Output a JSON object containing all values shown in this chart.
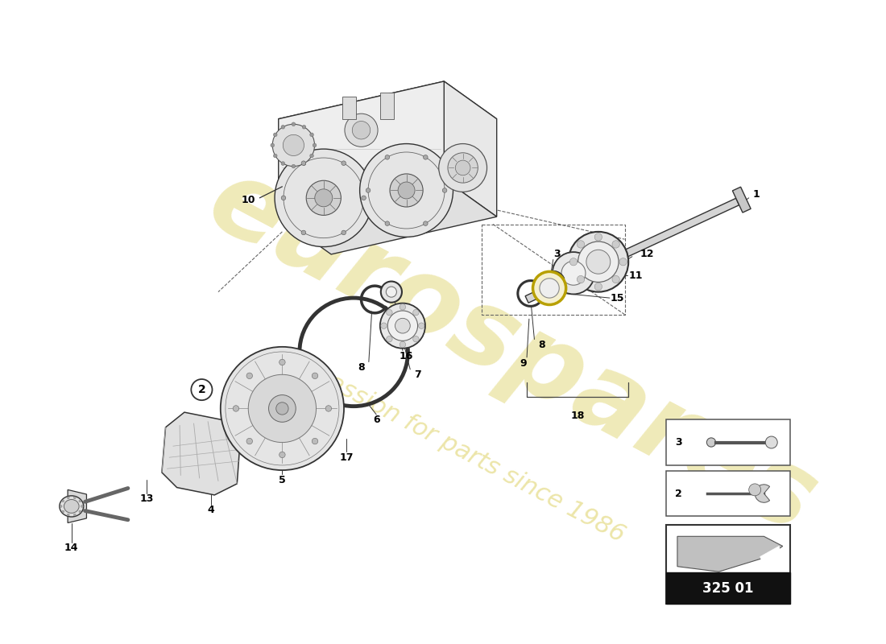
{
  "bg_color": "#ffffff",
  "line_color": "#333333",
  "watermark_color": "#c8b400",
  "watermark_alpha": 0.28,
  "catalog_number": "325 01",
  "lc": "#333333",
  "lw": 0.9
}
